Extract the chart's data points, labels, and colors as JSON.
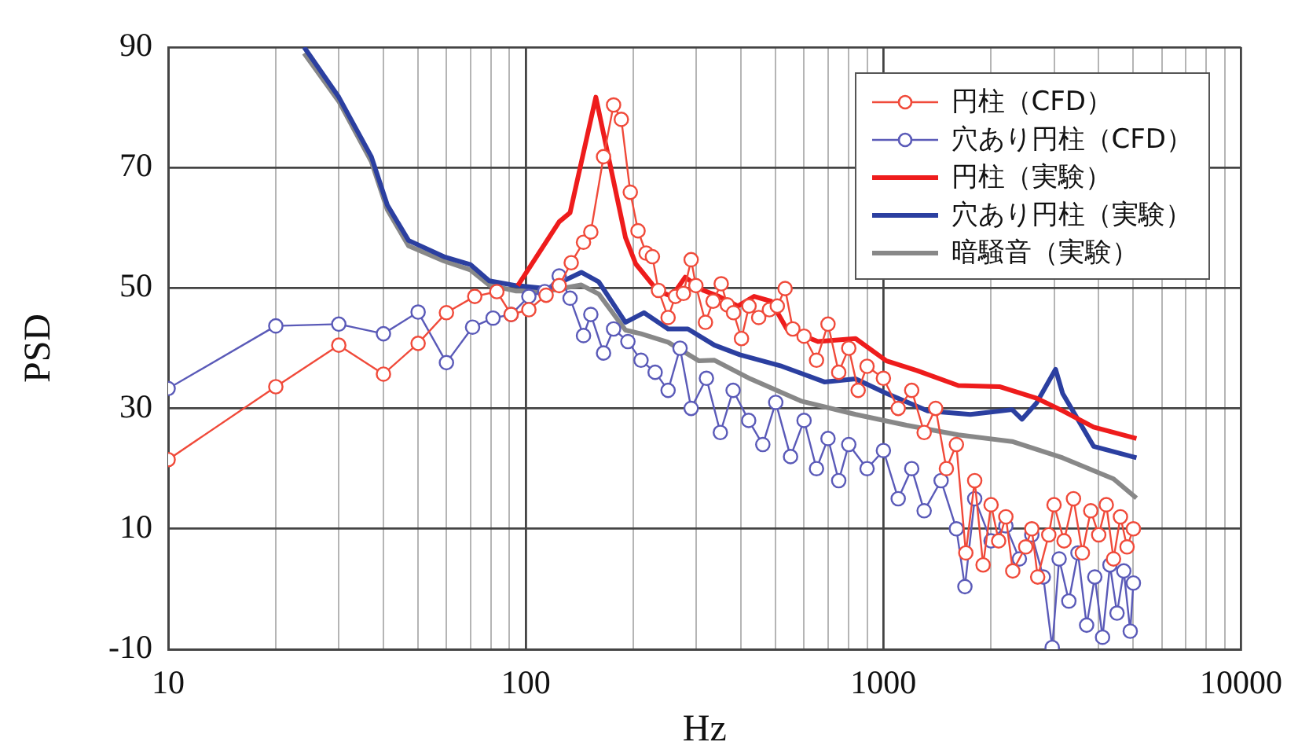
{
  "chart_data": {
    "type": "line",
    "xlabel": "Hz",
    "ylabel": "PSD",
    "log": "x",
    "grid": true,
    "legend": "top right",
    "xlim": [
      10,
      10000
    ],
    "ylim": [
      -10,
      90
    ],
    "yticks": [
      -10,
      10,
      30,
      50,
      70,
      90
    ],
    "xticks": [
      10,
      {
        "value": 20,
        "label": null
      },
      {
        "value": 30,
        "label": null
      },
      {
        "value": 40,
        "label": null
      },
      {
        "value": 50,
        "label": null
      },
      {
        "value": 60,
        "label": null
      },
      {
        "value": 70,
        "label": null
      },
      {
        "value": 80,
        "label": null
      },
      {
        "value": 90,
        "label": null
      },
      100,
      {
        "value": 200,
        "label": null
      },
      {
        "value": 300,
        "label": null
      },
      {
        "value": 400,
        "label": null
      },
      {
        "value": 500,
        "label": null
      },
      {
        "value": 600,
        "label": null
      },
      {
        "value": 700,
        "label": null
      },
      {
        "value": 800,
        "label": null
      },
      {
        "value": 900,
        "label": null
      },
      1000,
      {
        "value": 2000,
        "label": null
      },
      {
        "value": 3000,
        "label": null
      },
      {
        "value": 4000,
        "label": null
      },
      {
        "value": 5000,
        "label": null
      },
      {
        "value": 6000,
        "label": null
      },
      {
        "value": 7000,
        "label": null
      },
      {
        "value": 8000,
        "label": null
      },
      {
        "value": 9000,
        "label": null
      },
      10000
    ],
    "series": [
      {
        "name": "円柱（CFD）",
        "marker": "circle",
        "color": "#f04a3a",
        "x": [
          10,
          20,
          30,
          40,
          50,
          60,
          72,
          83,
          91,
          102,
          114,
          124,
          134,
          145,
          152,
          165,
          176,
          185,
          196,
          206,
          217,
          226,
          235,
          250,
          262,
          276,
          290,
          299,
          318,
          334,
          352,
          366,
          381,
          401,
          421,
          448,
          480,
          505,
          531,
          558,
          600,
          650,
          700,
          750,
          800,
          850,
          900,
          1000,
          1100,
          1200,
          1300,
          1400,
          1500,
          1600,
          1700,
          1800,
          1900,
          2000,
          2100,
          2200,
          2300,
          2500,
          2600,
          2700,
          2900,
          3000,
          3200,
          3400,
          3600,
          3800,
          4000,
          4200,
          4400,
          4600,
          4800,
          5000
        ],
        "values": [
          21.5,
          33.6,
          40.5,
          35.7,
          40.8,
          45.9,
          48.6,
          49.4,
          45.6,
          46.4,
          48.8,
          50.4,
          54.2,
          57.6,
          59.3,
          71.8,
          80.4,
          78,
          65.9,
          59.5,
          55.8,
          55.2,
          49.6,
          45.1,
          48.6,
          49.1,
          54.7,
          50.4,
          44.3,
          47.8,
          50.7,
          47.2,
          45.9,
          41.6,
          47,
          45.1,
          46.4,
          47,
          49.9,
          43.2,
          42,
          38,
          44,
          36,
          40,
          33,
          37,
          35,
          30,
          33,
          26,
          30,
          20,
          24,
          6,
          18,
          4,
          14,
          8,
          12,
          3,
          7,
          10,
          2,
          9,
          14,
          8,
          15,
          6,
          13,
          9,
          14,
          5,
          12,
          7,
          10
        ]
      },
      {
        "name": "穴あり円柱（CFD）",
        "marker": "circle",
        "color": "#5a5ab8",
        "x": [
          10,
          20,
          30,
          40,
          50,
          60,
          71,
          81,
          91,
          102,
          113,
          124,
          133,
          145,
          152,
          165,
          176,
          193,
          210,
          230,
          250,
          270,
          290,
          320,
          350,
          380,
          420,
          460,
          500,
          550,
          600,
          650,
          700,
          750,
          800,
          900,
          1000,
          1100,
          1200,
          1300,
          1450,
          1600,
          1690,
          1800,
          2000,
          2200,
          2400,
          2600,
          2800,
          2965,
          3100,
          3300,
          3500,
          3700,
          3900,
          4100,
          4300,
          4500,
          4700,
          4900,
          5000
        ],
        "values": [
          33.3,
          43.7,
          44,
          42.4,
          46,
          37.6,
          43.5,
          45,
          45.6,
          48.6,
          49.4,
          52,
          48.3,
          42.1,
          45.6,
          39.2,
          43.2,
          41.1,
          38,
          36,
          33,
          40,
          30,
          35,
          26,
          33,
          28,
          24,
          31,
          22,
          28,
          20,
          25,
          18,
          24,
          20,
          23,
          15,
          20,
          13,
          18,
          10,
          0.4,
          15,
          8,
          10.5,
          5,
          9,
          2,
          -9.7,
          5,
          -2,
          6,
          -6,
          2,
          -8,
          4,
          -4,
          3,
          -7,
          1
        ]
      },
      {
        "name": "円柱（実験）",
        "marker": "none",
        "color": "#ee1c1c",
        "x": [
          95,
          124,
          133,
          157,
          190,
          203,
          233,
          256,
          279,
          314,
          347,
          392,
          435,
          485,
          537,
          656,
          836,
          1020,
          1240,
          1620,
          2120,
          2680,
          3170,
          3870,
          5100
        ],
        "values": [
          50.4,
          61,
          62.5,
          81.7,
          58.4,
          54,
          49.6,
          48.6,
          51.8,
          49.6,
          48.6,
          47,
          48.6,
          47.8,
          43.2,
          41.1,
          41.6,
          37.9,
          36.3,
          33.8,
          33.6,
          31.7,
          29.6,
          26.9,
          25
        ]
      },
      {
        "name": "穴あり円柱（実験）",
        "marker": "none",
        "color": "#2b3fa0",
        "x": [
          24,
          30,
          37,
          41,
          47,
          59,
          70,
          79,
          94,
          115,
          143,
          160,
          190,
          214,
          250,
          284,
          337,
          397,
          520,
          684,
          836,
          1020,
          1330,
          1750,
          2290,
          2440,
          2680,
          3030,
          3170,
          3870,
          5100
        ],
        "values": [
          90,
          81.7,
          71.8,
          63.8,
          57.9,
          55.2,
          53.9,
          51.2,
          50.4,
          49.9,
          52.6,
          51,
          44.3,
          45.9,
          43.2,
          43.2,
          40.5,
          38.9,
          37,
          34.4,
          34.9,
          32.5,
          29.6,
          29,
          29.8,
          28.2,
          30.9,
          36.5,
          32.5,
          23.7,
          21.8
        ]
      },
      {
        "name": "暗騒音（実験）",
        "marker": "none",
        "color": "#888888",
        "x": [
          24,
          30,
          37,
          41,
          47,
          59,
          70,
          79,
          94,
          115,
          143,
          160,
          190,
          210,
          250,
          305,
          337,
          425,
          590,
          836,
          1160,
          1620,
          2290,
          3170,
          4400,
          5100
        ],
        "values": [
          89,
          81,
          71,
          63,
          57,
          54.5,
          53,
          50.5,
          49.5,
          49.5,
          50.5,
          49,
          43,
          42.4,
          41,
          37.9,
          38,
          34.9,
          31.2,
          29,
          27.2,
          25.6,
          24.5,
          21.8,
          18.3,
          15.1
        ]
      }
    ]
  }
}
